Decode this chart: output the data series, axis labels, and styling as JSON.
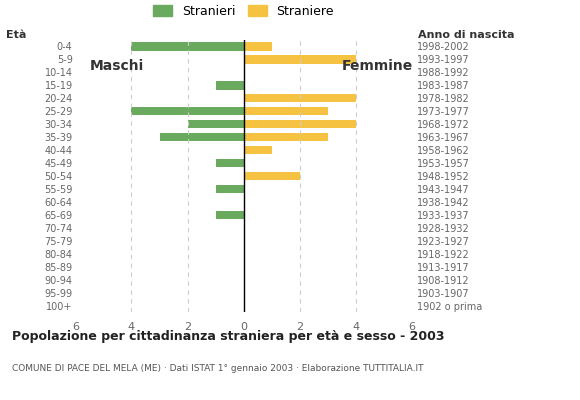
{
  "age_groups": [
    "100+",
    "95-99",
    "90-94",
    "85-89",
    "80-84",
    "75-79",
    "70-74",
    "65-69",
    "60-64",
    "55-59",
    "50-54",
    "45-49",
    "40-44",
    "35-39",
    "30-34",
    "25-29",
    "20-24",
    "15-19",
    "10-14",
    "5-9",
    "0-4"
  ],
  "birth_years": [
    "1902 o prima",
    "1903-1907",
    "1908-1912",
    "1913-1917",
    "1918-1922",
    "1923-1927",
    "1928-1932",
    "1933-1937",
    "1938-1942",
    "1943-1947",
    "1948-1952",
    "1953-1957",
    "1958-1962",
    "1963-1967",
    "1968-1972",
    "1973-1977",
    "1978-1982",
    "1983-1987",
    "1988-1992",
    "1993-1997",
    "1998-2002"
  ],
  "males": [
    0,
    0,
    0,
    0,
    0,
    0,
    0,
    1,
    0,
    1,
    0,
    1,
    0,
    3,
    2,
    4,
    0,
    1,
    0,
    0,
    4
  ],
  "females": [
    0,
    0,
    0,
    0,
    0,
    0,
    0,
    0,
    0,
    0,
    2,
    0,
    1,
    3,
    4,
    3,
    4,
    0,
    0,
    4,
    1
  ],
  "male_color": "#6aaa5e",
  "female_color": "#f5c242",
  "title": "Popolazione per cittadinanza straniera per età e sesso - 2003",
  "subtitle": "COMUNE DI PACE DEL MELA (ME) · Dati ISTAT 1° gennaio 2003 · Elaborazione TUTTITALIA.IT",
  "legend_male": "Stranieri",
  "legend_female": "Straniere",
  "label_eta": "Età",
  "label_maschi": "Maschi",
  "label_femmine": "Femmine",
  "label_anno": "Anno di nascita",
  "xlim": 6,
  "background_color": "#ffffff",
  "grid_color": "#cccccc",
  "bar_height": 0.65
}
